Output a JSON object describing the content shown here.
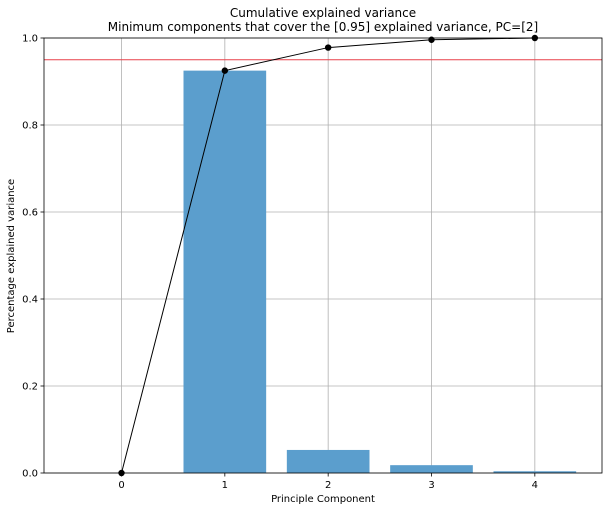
{
  "chart_data": {
    "type": "bar",
    "title": "Cumulative explained variance",
    "subtitle": "Minimum components that cover the [0.95] explained variance, PC=[2]",
    "xlabel": "Principle Component",
    "ylabel": "Percentage explained variance",
    "x": [
      0,
      1,
      2,
      3,
      4
    ],
    "xlim": [
      -0.75,
      4.65
    ],
    "ylim": [
      0,
      1.0
    ],
    "x_ticks": [
      "0",
      "1",
      "2",
      "3",
      "4"
    ],
    "y_ticks": [
      "0.0",
      "0.2",
      "0.4",
      "0.6",
      "0.8",
      "1.0"
    ],
    "grid": true,
    "bars": {
      "x": [
        1,
        2,
        3,
        4
      ],
      "values": [
        0.925,
        0.053,
        0.018,
        0.004
      ],
      "color": "#5b9ecd"
    },
    "line": {
      "x": [
        0,
        1,
        2,
        3,
        4
      ],
      "values": [
        0.0,
        0.925,
        0.978,
        0.996,
        1.0
      ],
      "color": "#000000"
    },
    "threshold": {
      "value": 0.95,
      "color": "#e8404a"
    }
  }
}
